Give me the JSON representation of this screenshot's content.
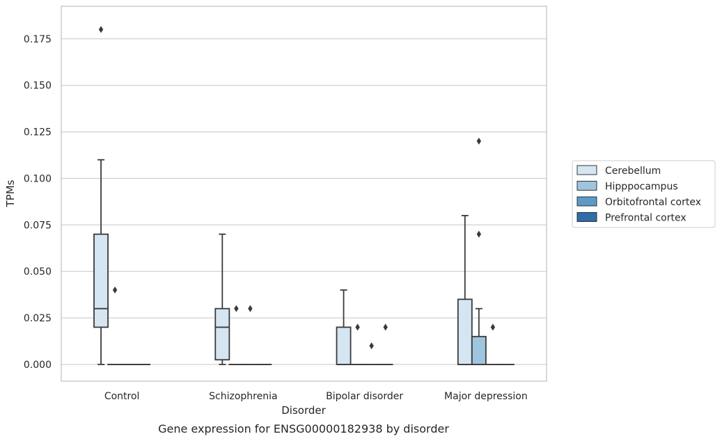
{
  "chart_data": {
    "type": "box",
    "xlabel": "Disorder",
    "ylabel": "TPMs",
    "caption": "Gene expression for ENSG00000182938 by disorder",
    "ylim": [
      -0.009,
      0.1925
    ],
    "yticks": [
      0.0,
      0.025,
      0.05,
      0.075,
      0.1,
      0.125,
      0.15,
      0.175
    ],
    "ytick_labels": [
      "0.000",
      "0.025",
      "0.050",
      "0.075",
      "0.100",
      "0.125",
      "0.150",
      "0.175"
    ],
    "grid": "horizontal",
    "legend_position": "right",
    "categories": [
      "Control",
      "Schizophrenia",
      "Bipolar disorder",
      "Major depression"
    ],
    "series": [
      {
        "name": "Cerebellum",
        "color": "#d6e5f2",
        "boxes": [
          {
            "q1": 0.02,
            "median": 0.03,
            "q3": 0.07,
            "whisker_low": 0.0,
            "whisker_high": 0.11,
            "outliers": [
              0.18
            ]
          },
          {
            "q1": 0.0025,
            "median": 0.02,
            "q3": 0.03,
            "whisker_low": 0.0,
            "whisker_high": 0.07,
            "outliers": []
          },
          {
            "q1": 0.0,
            "median": 0.0,
            "q3": 0.02,
            "whisker_low": 0.0,
            "whisker_high": 0.04,
            "outliers": []
          },
          {
            "q1": 0.0,
            "median": 0.0,
            "q3": 0.035,
            "whisker_low": 0.0,
            "whisker_high": 0.08,
            "outliers": []
          }
        ]
      },
      {
        "name": "Hipppocampus",
        "color": "#9fc4de",
        "boxes": [
          {
            "q1": 0.0,
            "median": 0.0,
            "q3": 0.0,
            "whisker_low": 0.0,
            "whisker_high": 0.0,
            "outliers": [
              0.04
            ]
          },
          {
            "q1": 0.0,
            "median": 0.0,
            "q3": 0.0,
            "whisker_low": 0.0,
            "whisker_high": 0.0,
            "outliers": [
              0.03
            ]
          },
          {
            "q1": 0.0,
            "median": 0.0,
            "q3": 0.0,
            "whisker_low": 0.0,
            "whisker_high": 0.0,
            "outliers": [
              0.02
            ]
          },
          {
            "q1": 0.0,
            "median": 0.0,
            "q3": 0.015,
            "whisker_low": 0.0,
            "whisker_high": 0.03,
            "outliers": [
              0.12,
              0.07
            ]
          }
        ]
      },
      {
        "name": "Orbitofrontal cortex",
        "color": "#5c9bc9",
        "boxes": [
          {
            "q1": 0.0,
            "median": 0.0,
            "q3": 0.0,
            "whisker_low": 0.0,
            "whisker_high": 0.0,
            "outliers": []
          },
          {
            "q1": 0.0,
            "median": 0.0,
            "q3": 0.0,
            "whisker_low": 0.0,
            "whisker_high": 0.0,
            "outliers": [
              0.03
            ]
          },
          {
            "q1": 0.0,
            "median": 0.0,
            "q3": 0.0,
            "whisker_low": 0.0,
            "whisker_high": 0.0,
            "outliers": [
              0.01
            ]
          },
          {
            "q1": 0.0,
            "median": 0.0,
            "q3": 0.0,
            "whisker_low": 0.0,
            "whisker_high": 0.0,
            "outliers": [
              0.02
            ]
          }
        ]
      },
      {
        "name": "Prefrontal cortex",
        "color": "#2f6ea8",
        "boxes": [
          {
            "q1": 0.0,
            "median": 0.0,
            "q3": 0.0,
            "whisker_low": 0.0,
            "whisker_high": 0.0,
            "outliers": []
          },
          {
            "q1": 0.0,
            "median": 0.0,
            "q3": 0.0,
            "whisker_low": 0.0,
            "whisker_high": 0.0,
            "outliers": []
          },
          {
            "q1": 0.0,
            "median": 0.0,
            "q3": 0.0,
            "whisker_low": 0.0,
            "whisker_high": 0.0,
            "outliers": [
              0.02
            ]
          },
          {
            "q1": 0.0,
            "median": 0.0,
            "q3": 0.0,
            "whisker_low": 0.0,
            "whisker_high": 0.0,
            "outliers": []
          }
        ]
      }
    ]
  },
  "colors": {
    "grid": "#cccccc",
    "frame": "#cccccc",
    "line": "#3a3a3a",
    "text": "#262626"
  }
}
